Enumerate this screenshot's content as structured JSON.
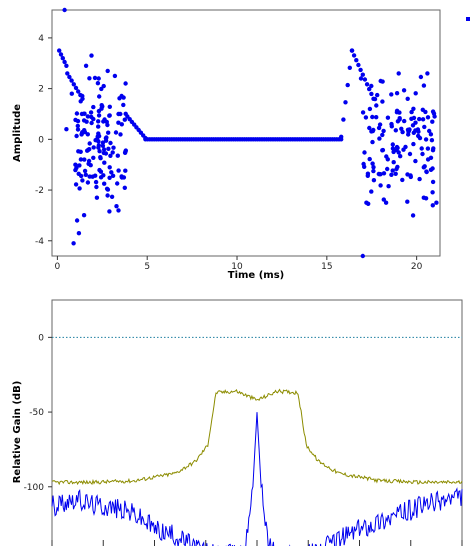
{
  "chart_data": [
    {
      "type": "scatter",
      "title": "",
      "xlabel": "Time (ms)",
      "ylabel": "Amplitude",
      "xlim": [
        -0.3,
        21.3
      ],
      "ylim": [
        -4.6,
        5.1
      ],
      "xticks": [
        0,
        5,
        10,
        15,
        20
      ],
      "yticks": [
        -4,
        -2,
        0,
        2,
        4
      ],
      "grid": false,
      "legend": "top-right",
      "series": [
        {
          "color": "#0000ee",
          "burst_segments": [
            {
              "x": [
                0.1,
                0.5
              ],
              "y": [
                3.5,
                2.9
              ]
            },
            {
              "x": [
                0.55,
                1.4
              ],
              "y": [
                2.6,
                1.6
              ]
            },
            {
              "x": [
                3.9,
                4.9
              ],
              "y": [
                0.9,
                0.05
              ]
            },
            {
              "x": [
                4.9,
                15.8
              ],
              "y": [
                0.0,
                0.0
              ]
            },
            {
              "x": [
                15.8,
                16.4
              ],
              "y": [
                0.1,
                3.5
              ]
            },
            {
              "x": [
                16.4,
                17.6
              ],
              "y": [
                3.5,
                1.6
              ]
            }
          ],
          "scatter_points": [
            {
              "x": 0.4,
              "y": 5.1
            },
            {
              "x": 0.5,
              "y": 0.4
            },
            {
              "x": 0.8,
              "y": 1.8
            },
            {
              "x": 0.9,
              "y": -4.1
            },
            {
              "x": 1.0,
              "y": -1.0
            },
            {
              "x": 1.1,
              "y": -3.2
            },
            {
              "x": 1.2,
              "y": -3.7
            },
            {
              "x": 1.3,
              "y": 1.5
            },
            {
              "x": 1.5,
              "y": -0.8
            },
            {
              "x": 1.6,
              "y": 2.9
            },
            {
              "x": 1.7,
              "y": -1.7
            },
            {
              "x": 1.9,
              "y": 3.3
            },
            {
              "x": 2.0,
              "y": 0.8
            },
            {
              "x": 2.2,
              "y": -2.3
            },
            {
              "x": 2.3,
              "y": 2.4
            },
            {
              "x": 2.5,
              "y": 1.3
            },
            {
              "x": 2.6,
              "y": -0.4
            },
            {
              "x": 2.8,
              "y": 2.7
            },
            {
              "x": 3.0,
              "y": -1.3
            },
            {
              "x": 3.2,
              "y": 2.5
            },
            {
              "x": 3.4,
              "y": -2.8
            },
            {
              "x": 3.5,
              "y": 1.0
            },
            {
              "x": 3.7,
              "y": -1.5
            },
            {
              "x": 3.8,
              "y": 2.2
            },
            {
              "x": 16.9,
              "y": 2.4
            },
            {
              "x": 17.0,
              "y": -4.6
            },
            {
              "x": 17.2,
              "y": -2.5
            },
            {
              "x": 17.4,
              "y": 1.2
            },
            {
              "x": 17.6,
              "y": -1.1
            },
            {
              "x": 18.0,
              "y": 2.3
            },
            {
              "x": 18.3,
              "y": -2.5
            },
            {
              "x": 18.6,
              "y": 0.6
            },
            {
              "x": 19.0,
              "y": 2.6
            },
            {
              "x": 19.2,
              "y": -1.6
            },
            {
              "x": 19.5,
              "y": 1.6
            },
            {
              "x": 19.8,
              "y": -3.0
            },
            {
              "x": 20.1,
              "y": 0.3
            },
            {
              "x": 20.4,
              "y": -2.3
            },
            {
              "x": 20.6,
              "y": 2.6
            },
            {
              "x": 20.8,
              "y": -1.2
            },
            {
              "x": 21.0,
              "y": 0.9
            },
            {
              "x": 21.1,
              "y": -2.5
            }
          ]
        }
      ]
    },
    {
      "type": "line",
      "title": "",
      "xlabel": "",
      "ylabel": "Relative Gain (dB)",
      "ylim": [
        -149,
        25
      ],
      "yticks": [
        -100,
        -50,
        0
      ],
      "grid": false,
      "series": [
        {
          "color": "#1e7fa0",
          "style": "dotted",
          "x": [
            0,
            1
          ],
          "y": [
            0,
            0
          ]
        },
        {
          "color": "#8c8c00",
          "x": [
            0.0,
            0.1,
            0.2,
            0.3,
            0.35,
            0.38,
            0.4,
            0.45,
            0.5,
            0.55,
            0.6,
            0.62,
            0.65,
            0.7,
            0.8,
            0.9,
            1.0
          ],
          "y": [
            -97,
            -97,
            -96,
            -91,
            -83,
            -72,
            -37,
            -36,
            -42,
            -36,
            -37,
            -72,
            -83,
            -91,
            -96,
            -97,
            -97
          ]
        },
        {
          "color": "#0000ee",
          "x": [
            0.0,
            0.05,
            0.1,
            0.15,
            0.2,
            0.25,
            0.3,
            0.35,
            0.4,
            0.45,
            0.47,
            0.49,
            0.5,
            0.51,
            0.53,
            0.55,
            0.6,
            0.65,
            0.7,
            0.75,
            0.8,
            0.85,
            0.9,
            0.95,
            1.0
          ],
          "y": [
            -113,
            -108,
            -112,
            -114,
            -118,
            -128,
            -133,
            -140,
            -146,
            -145,
            -140,
            -100,
            -50,
            -100,
            -140,
            -145,
            -146,
            -143,
            -135,
            -128,
            -123,
            -118,
            -113,
            -109,
            -107
          ]
        }
      ]
    }
  ]
}
